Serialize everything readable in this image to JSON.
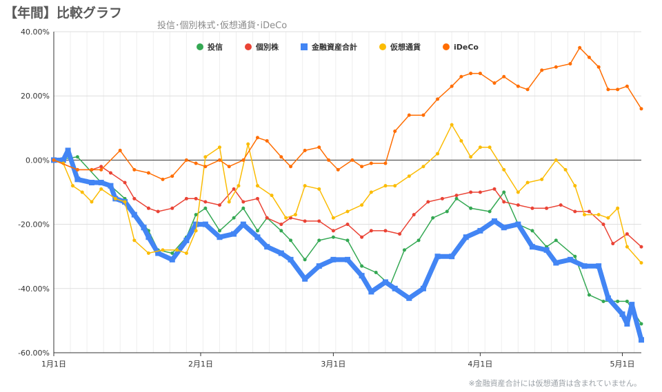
{
  "chart_data": {
    "type": "line",
    "title": "【年間】比較グラフ",
    "subtitle": "投信･個別株式･仮想通貨･iDeCo",
    "footnote": "※金融資産合計には仮想通貨は含まれていません。",
    "legend_position": "top",
    "grid": true,
    "ylim": [
      -0.6,
      0.4
    ],
    "yticks": [
      -0.6,
      -0.4,
      -0.2,
      0.0,
      0.2,
      0.4
    ],
    "ytick_labels": [
      "-60.00%",
      "-40.00%",
      "-20.00%",
      "0.00%",
      "20.00%",
      "40.00%"
    ],
    "xlim": [
      0,
      124
    ],
    "xticks": [
      0,
      31,
      59,
      90,
      120
    ],
    "xtick_labels": [
      "1月1日",
      "2月1日",
      "3月1日",
      "4月1日",
      "5月1日"
    ],
    "series": [
      {
        "name": "投信",
        "color": "#34a853",
        "x": [
          0,
          5,
          10,
          12,
          15,
          20,
          22,
          25,
          28,
          30,
          32,
          35,
          38,
          40,
          43,
          45,
          48,
          50,
          53,
          56,
          59,
          62,
          65,
          68,
          71,
          74,
          77,
          80,
          83,
          85,
          88,
          92,
          95,
          98,
          101,
          104,
          106,
          110,
          113,
          116,
          119,
          121,
          124
        ],
        "y": [
          0,
          0.01,
          -0.07,
          -0.08,
          -0.12,
          -0.22,
          -0.28,
          -0.29,
          -0.24,
          -0.17,
          -0.15,
          -0.22,
          -0.18,
          -0.15,
          -0.22,
          -0.18,
          -0.22,
          -0.25,
          -0.31,
          -0.25,
          -0.24,
          -0.25,
          -0.33,
          -0.35,
          -0.39,
          -0.28,
          -0.25,
          -0.18,
          -0.16,
          -0.12,
          -0.15,
          -0.16,
          -0.1,
          -0.2,
          -0.22,
          -0.27,
          -0.25,
          -0.3,
          -0.42,
          -0.44,
          -0.44,
          -0.44,
          -0.51
        ]
      },
      {
        "name": "個別株",
        "color": "#ea4335",
        "x": [
          0,
          5,
          8,
          10,
          12,
          15,
          17,
          20,
          22,
          25,
          28,
          30,
          32,
          35,
          38,
          40,
          43,
          45,
          48,
          50,
          53,
          56,
          59,
          62,
          65,
          67,
          70,
          73,
          76,
          79,
          82,
          85,
          88,
          90,
          93,
          95,
          98,
          101,
          104,
          107,
          110,
          113,
          116,
          118,
          121,
          124
        ],
        "y": [
          0,
          -0.03,
          -0.03,
          -0.02,
          -0.04,
          -0.07,
          -0.12,
          -0.15,
          -0.16,
          -0.15,
          -0.12,
          -0.12,
          -0.13,
          -0.14,
          -0.09,
          -0.13,
          -0.12,
          -0.18,
          -0.2,
          -0.18,
          -0.19,
          -0.19,
          -0.22,
          -0.2,
          -0.24,
          -0.22,
          -0.22,
          -0.23,
          -0.17,
          -0.13,
          -0.12,
          -0.11,
          -0.1,
          -0.1,
          -0.09,
          -0.13,
          -0.14,
          -0.15,
          -0.15,
          -0.14,
          -0.16,
          -0.16,
          -0.2,
          -0.26,
          -0.23,
          -0.27
        ]
      },
      {
        "name": "金融資産合計",
        "color": "#4285f4",
        "x": [
          0,
          2,
          3,
          5,
          8,
          10,
          12,
          13,
          15,
          17,
          19,
          20,
          22,
          25,
          28,
          30,
          32,
          35,
          38,
          40,
          43,
          45,
          48,
          50,
          53,
          56,
          59,
          62,
          65,
          67,
          70,
          72,
          75,
          78,
          81,
          84,
          87,
          90,
          93,
          95,
          98,
          101,
          104,
          106,
          109,
          112,
          115,
          117,
          120,
          121,
          122,
          124
        ],
        "y": [
          0,
          0,
          0.03,
          -0.06,
          -0.07,
          -0.07,
          -0.08,
          -0.12,
          -0.13,
          -0.17,
          -0.21,
          -0.24,
          -0.29,
          -0.31,
          -0.25,
          -0.2,
          -0.2,
          -0.24,
          -0.23,
          -0.2,
          -0.24,
          -0.27,
          -0.29,
          -0.31,
          -0.37,
          -0.33,
          -0.31,
          -0.31,
          -0.36,
          -0.41,
          -0.38,
          -0.4,
          -0.43,
          -0.4,
          -0.3,
          -0.3,
          -0.24,
          -0.22,
          -0.19,
          -0.21,
          -0.2,
          -0.27,
          -0.28,
          -0.32,
          -0.31,
          -0.33,
          -0.33,
          -0.43,
          -0.48,
          -0.51,
          -0.45,
          -0.56
        ]
      },
      {
        "name": "仮想通貨",
        "color": "#fbbc04",
        "x": [
          0,
          2,
          4,
          6,
          8,
          10,
          13,
          15,
          17,
          20,
          23,
          26,
          28,
          30,
          32,
          35,
          37,
          39,
          41,
          43,
          46,
          49,
          51,
          53,
          56,
          59,
          62,
          65,
          67,
          70,
          72,
          75,
          78,
          81,
          84,
          86,
          88,
          90,
          92,
          95,
          98,
          100,
          103,
          106,
          108,
          110,
          112,
          115,
          117,
          119,
          121,
          124
        ],
        "y": [
          0,
          -0.01,
          -0.08,
          -0.1,
          -0.13,
          -0.09,
          -0.12,
          -0.13,
          -0.25,
          -0.29,
          -0.28,
          -0.28,
          -0.29,
          -0.22,
          0.01,
          0.04,
          -0.13,
          -0.08,
          0.05,
          -0.08,
          -0.11,
          -0.18,
          -0.17,
          -0.08,
          -0.09,
          -0.18,
          -0.16,
          -0.14,
          -0.1,
          -0.08,
          -0.08,
          -0.05,
          -0.02,
          0.02,
          0.11,
          0.06,
          0.01,
          0.04,
          0.04,
          -0.03,
          -0.1,
          -0.07,
          -0.06,
          0.0,
          -0.03,
          -0.08,
          -0.17,
          -0.17,
          -0.18,
          -0.15,
          -0.27,
          -0.32
        ]
      },
      {
        "name": "iDeCo",
        "color": "#ff6d01",
        "x": [
          0,
          5,
          8,
          10,
          14,
          17,
          20,
          23,
          25,
          28,
          30,
          32,
          35,
          37,
          40,
          43,
          45,
          48,
          50,
          53,
          56,
          58,
          60,
          63,
          65,
          67,
          70,
          72,
          75,
          78,
          81,
          84,
          86,
          88,
          90,
          93,
          95,
          98,
          100,
          103,
          106,
          109,
          111,
          113,
          115,
          117,
          119,
          121,
          124
        ],
        "y": [
          0,
          -0.03,
          -0.03,
          -0.03,
          0.03,
          -0.03,
          -0.04,
          -0.06,
          -0.05,
          0.0,
          -0.01,
          -0.02,
          0.0,
          -0.02,
          0.0,
          0.07,
          0.06,
          0.01,
          -0.02,
          0.03,
          0.04,
          0.0,
          -0.03,
          0.0,
          -0.02,
          -0.01,
          -0.01,
          0.09,
          0.14,
          0.14,
          0.19,
          0.23,
          0.26,
          0.27,
          0.27,
          0.24,
          0.26,
          0.23,
          0.22,
          0.28,
          0.29,
          0.3,
          0.35,
          0.32,
          0.29,
          0.22,
          0.22,
          0.23,
          0.16
        ]
      }
    ]
  }
}
